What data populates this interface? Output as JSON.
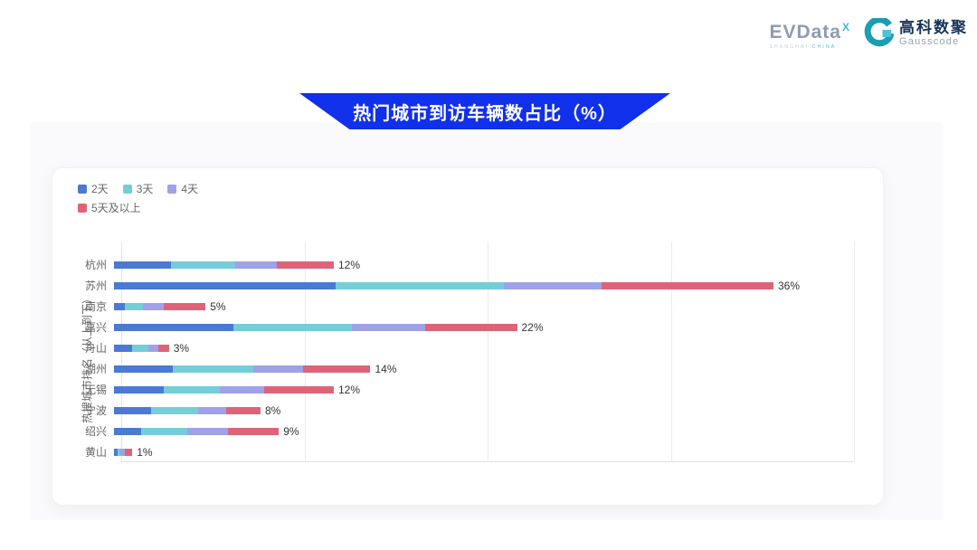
{
  "logos": {
    "evdata": {
      "text": "EVData",
      "superscript": "X",
      "subtext": "SHANGHAI CHINA"
    },
    "gausscode": {
      "cn": "高科数聚",
      "en": "Gausscode",
      "icon": "gausscode-g-icon",
      "icon_dark": "#1B9DB3",
      "icon_light": "#4EC3D6"
    }
  },
  "banner": {
    "title": "热门城市到访车辆数占比（%）",
    "color": "#1130EB"
  },
  "chart_data": {
    "type": "bar",
    "stacked": true,
    "orientation": "horizontal",
    "title": "热门城市到访车辆数占比（%）",
    "xlabel": "",
    "ylabel": "热搜城市排名（从上到下）",
    "categories": [
      "杭州",
      "苏州",
      "南京",
      "嘉兴",
      "舟山",
      "湖州",
      "无锡",
      "宁波",
      "绍兴",
      "黄山"
    ],
    "series": [
      {
        "name": "2天",
        "color": "#4B79D3",
        "values": [
          3.1,
          12.1,
          0.6,
          6.5,
          1.0,
          3.2,
          2.7,
          2.0,
          1.5,
          0.2
        ]
      },
      {
        "name": "3天",
        "color": "#74CDD8",
        "values": [
          3.5,
          9.2,
          1.0,
          6.5,
          0.9,
          4.4,
          3.1,
          2.6,
          2.5,
          0.1
        ]
      },
      {
        "name": "4天",
        "color": "#9FA1E9",
        "values": [
          2.3,
          5.3,
          1.1,
          4.0,
          0.5,
          2.7,
          2.4,
          1.5,
          2.2,
          0.3
        ]
      },
      {
        "name": "5天及以上",
        "color": "#DD6478",
        "values": [
          3.1,
          9.4,
          2.3,
          5.0,
          0.6,
          3.7,
          3.8,
          1.9,
          2.8,
          0.4
        ]
      }
    ],
    "totals": [
      12,
      36,
      5,
      22,
      3,
      14,
      12,
      8,
      9,
      1
    ],
    "totals_labels": [
      "12%",
      "36%",
      "5%",
      "22%",
      "3%",
      "14%",
      "12%",
      "8%",
      "9%",
      "1%"
    ],
    "xlim": [
      0,
      40
    ],
    "gridlines": [
      0,
      10,
      20,
      30,
      40
    ],
    "grid": true,
    "legend_position": "top-left"
  }
}
